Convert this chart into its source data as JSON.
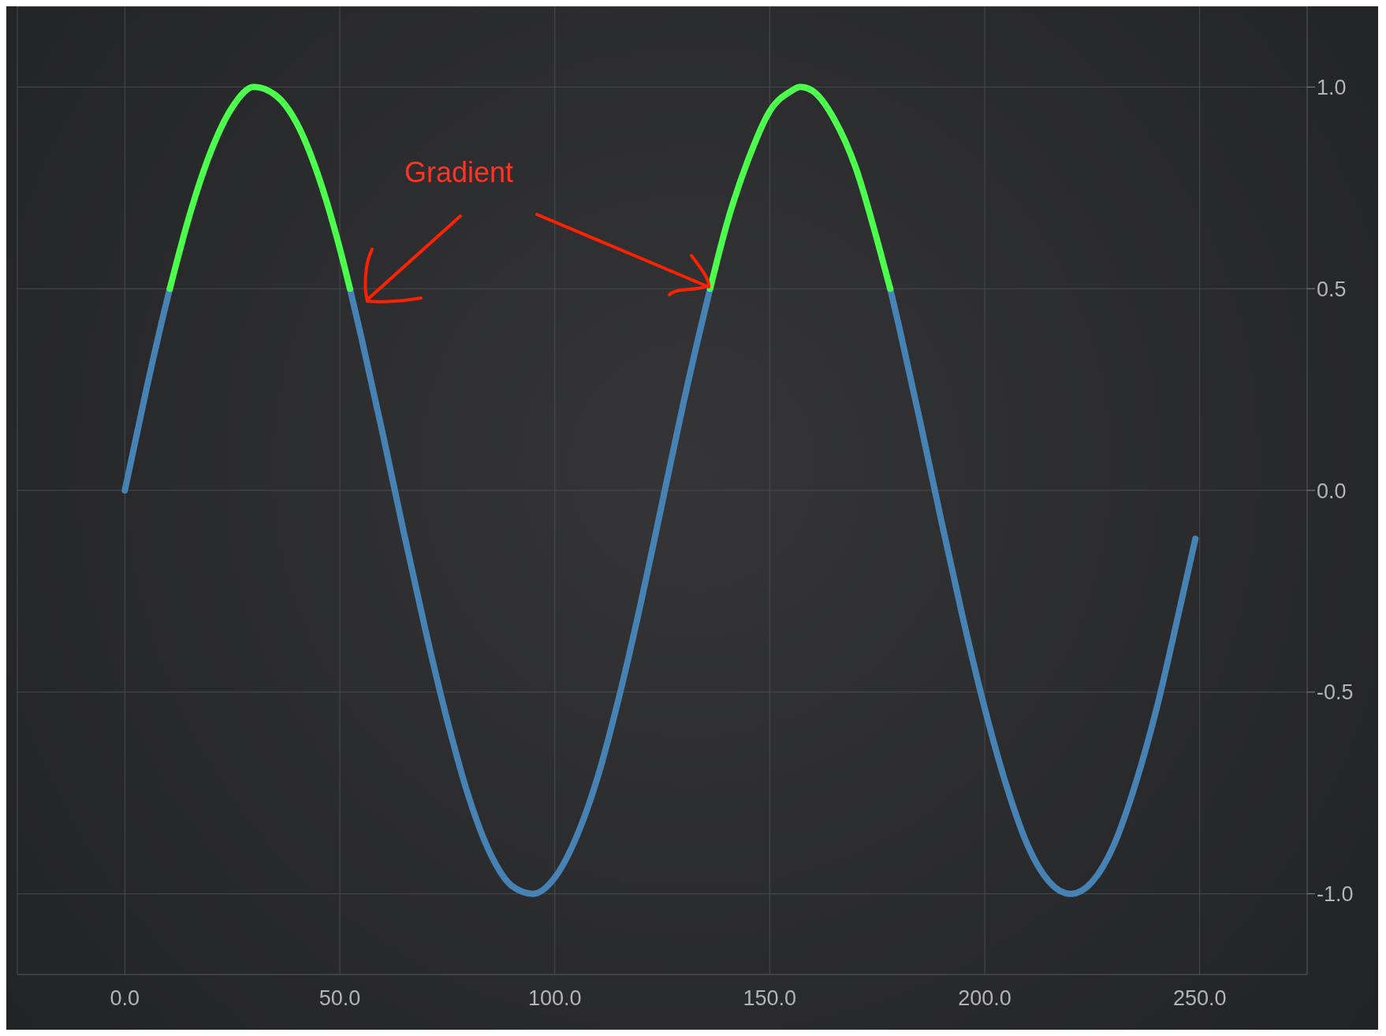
{
  "chart_data": {
    "type": "line",
    "annotations": [
      {
        "text": "Gradient",
        "x": 136.14,
        "y": 0.5
      }
    ],
    "series": [
      {
        "color": "#4682b4",
        "x": [
          0,
          5,
          10,
          10.47,
          31.4,
          52.36,
          55,
          60,
          65,
          70,
          75,
          80,
          85,
          90,
          95,
          100,
          105,
          110,
          115,
          120,
          125,
          130,
          135,
          136.14,
          157,
          178.02,
          180,
          185,
          190,
          195,
          200,
          205,
          210,
          215,
          220,
          225,
          230,
          235,
          240,
          245,
          249
        ],
        "values": [
          0,
          0.25,
          0.48,
          0.5,
          null,
          0.5,
          0.38,
          0.14,
          -0.11,
          -0.35,
          -0.57,
          -0.76,
          -0.9,
          -0.98,
          -1.0,
          -0.96,
          -0.86,
          -0.71,
          -0.51,
          -0.28,
          -0.03,
          0.22,
          0.45,
          0.5,
          null,
          0.5,
          0.41,
          0.17,
          -0.08,
          -0.32,
          -0.54,
          -0.73,
          -0.88,
          -0.97,
          -1.0,
          -0.97,
          -0.88,
          -0.73,
          -0.54,
          -0.31,
          -0.12
        ]
      },
      {
        "color": "#4cff4c",
        "x": [
          10.47,
          15,
          20,
          25,
          30,
          35,
          40,
          45,
          50,
          52.36,
          94,
          136.14,
          140,
          145,
          150,
          155,
          157.08,
          160,
          165,
          170,
          175,
          178.02
        ],
        "values": [
          0.5,
          0.68,
          0.84,
          0.95,
          1.0,
          0.98,
          0.91,
          0.78,
          0.6,
          0.5,
          null,
          0.5,
          0.66,
          0.82,
          0.94,
          0.99,
          1.0,
          0.99,
          0.92,
          0.8,
          0.62,
          0.5
        ]
      }
    ],
    "xlim": [
      -25,
      275
    ],
    "xticks": [
      {
        "value": 0,
        "label": "0.0"
      },
      {
        "value": 50,
        "label": "50.0"
      },
      {
        "value": 100,
        "label": "100.0"
      },
      {
        "value": 150,
        "label": "150.0"
      },
      {
        "value": 200,
        "label": "200.0"
      },
      {
        "value": 250,
        "label": "250.0"
      }
    ],
    "ylim": [
      -1.2,
      1.2
    ],
    "yticks": [
      {
        "value": -1,
        "label": "-1.0"
      },
      {
        "value": -0.5,
        "label": "-0.5"
      },
      {
        "value": 0,
        "label": "0.0"
      },
      {
        "value": 0.5,
        "label": "0.5"
      },
      {
        "value": 1,
        "label": "1.0"
      }
    ],
    "grid": true,
    "marker": "none",
    "line_style": "solid"
  }
}
